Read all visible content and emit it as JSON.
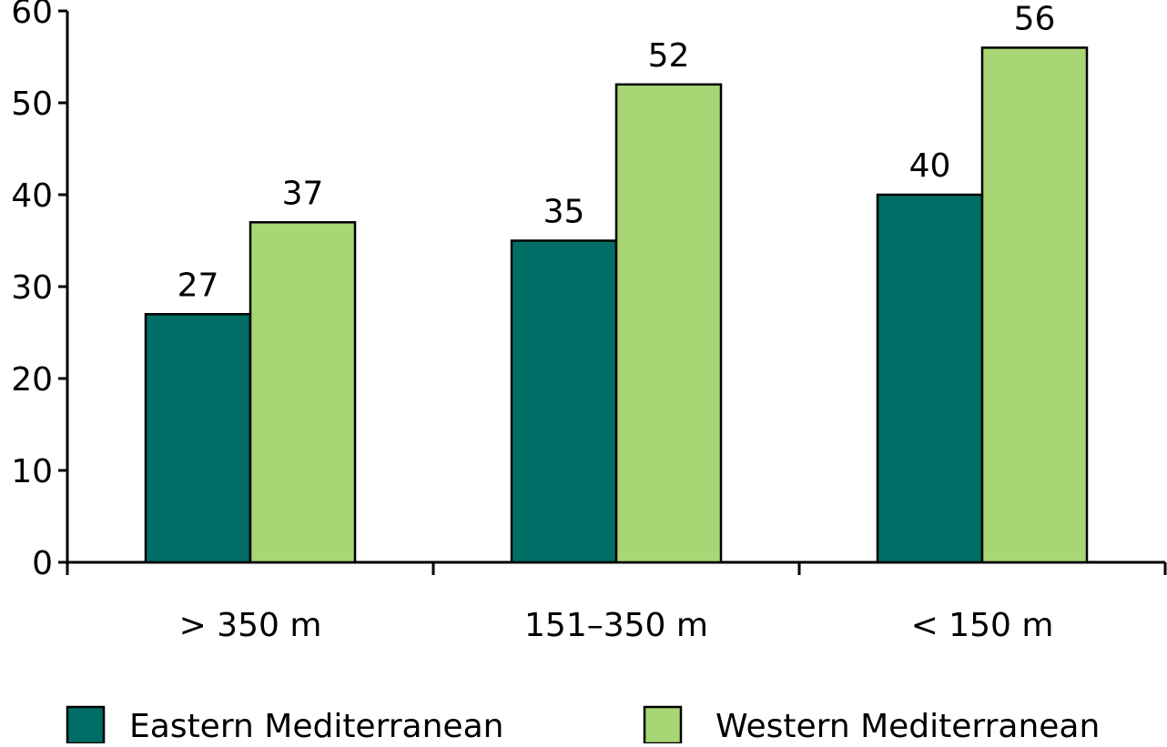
{
  "chart_data": {
    "type": "bar",
    "categories": [
      "> 350 m",
      "151–350 m",
      "< 150 m"
    ],
    "series": [
      {
        "name": "Eastern Mediterranean",
        "values": [
          27,
          35,
          40
        ],
        "color": "#006e66"
      },
      {
        "name": "Western Mediterranean",
        "values": [
          37,
          52,
          56
        ],
        "color": "#a9d674"
      }
    ],
    "title": "",
    "xlabel": "",
    "ylabel": "",
    "ylim": [
      0,
      60
    ],
    "yticks": [
      0,
      10,
      20,
      30,
      40,
      50,
      60
    ],
    "data_labels": true,
    "grid": false,
    "legend_position": "bottom"
  }
}
